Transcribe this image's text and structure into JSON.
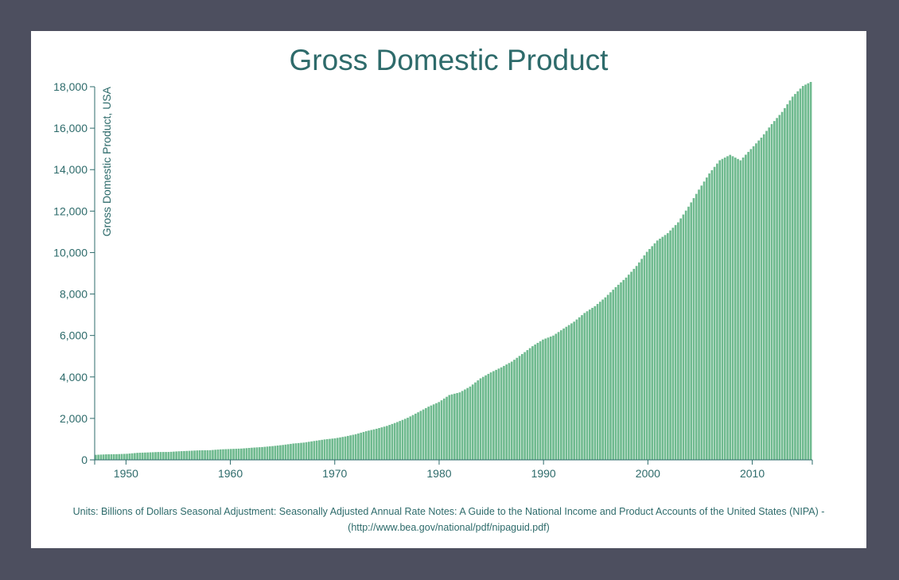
{
  "chart_data": {
    "type": "bar",
    "title": "Gross Domestic Product",
    "ylabel": "Gross Domestic Product, USA",
    "xlabel": "",
    "ylim": [
      0,
      18000
    ],
    "xlim": [
      1947.0,
      2015.75
    ],
    "frequency": "quarterly",
    "bar_color": "#6fba8f",
    "axis_color": "#2e6b6b",
    "y_ticks": [
      {
        "value": 0,
        "label": "0"
      },
      {
        "value": 2000,
        "label": "2,000"
      },
      {
        "value": 4000,
        "label": "4,000"
      },
      {
        "value": 6000,
        "label": "6,000"
      },
      {
        "value": 8000,
        "label": "8,000"
      },
      {
        "value": 10000,
        "label": "10,000"
      },
      {
        "value": 12000,
        "label": "12,000"
      },
      {
        "value": 14000,
        "label": "14,000"
      },
      {
        "value": 16000,
        "label": "16,000"
      },
      {
        "value": 18000,
        "label": "18,000"
      }
    ],
    "x_ticks": [
      {
        "value": 1950,
        "label": "1950"
      },
      {
        "value": 1960,
        "label": "1960"
      },
      {
        "value": 1970,
        "label": "1970"
      },
      {
        "value": 1980,
        "label": "1980"
      },
      {
        "value": 1990,
        "label": "1990"
      },
      {
        "value": 2000,
        "label": "2000"
      },
      {
        "value": 2010,
        "label": "2010"
      }
    ],
    "annual_anchors": {
      "years": [
        1947,
        1948,
        1949,
        1950,
        1951,
        1952,
        1953,
        1954,
        1955,
        1956,
        1957,
        1958,
        1959,
        1960,
        1961,
        1962,
        1963,
        1964,
        1965,
        1966,
        1967,
        1968,
        1969,
        1970,
        1971,
        1972,
        1973,
        1974,
        1975,
        1976,
        1977,
        1978,
        1979,
        1980,
        1981,
        1982,
        1983,
        1984,
        1985,
        1986,
        1987,
        1988,
        1989,
        1990,
        1991,
        1992,
        1993,
        1994,
        1995,
        1996,
        1997,
        1998,
        1999,
        2000,
        2001,
        2002,
        2003,
        2004,
        2005,
        2006,
        2007,
        2008,
        2009,
        2010,
        2011,
        2012,
        2013,
        2014,
        2015
      ],
      "values": [
        243,
        266,
        275,
        293,
        339,
        358,
        379,
        381,
        414,
        437,
        461,
        467,
        506,
        526,
        545,
        586,
        618,
        664,
        719,
        788,
        833,
        910,
        985,
        1039,
        1127,
        1238,
        1382,
        1500,
        1638,
        1825,
        2031,
        2295,
        2566,
        2789,
        3128,
        3255,
        3537,
        3933,
        4220,
        4463,
        4740,
        5104,
        5484,
        5803,
        5996,
        6338,
        6667,
        7086,
        7415,
        7839,
        8332,
        8794,
        9354,
        10035,
        10582,
        10936,
        11458,
        12214,
        13037,
        13815,
        14452,
        14713,
        14449,
        14992,
        15543,
        16197,
        16785,
        17522,
        18037
      ]
    }
  },
  "footnote": {
    "line1": "Units: Billions of Dollars Seasonal Adjustment: Seasonally Adjusted Annual Rate Notes: A Guide to the National Income and Product Accounts of the United States (NIPA) -",
    "line2": "(http://www.bea.gov/national/pdf/nipaguid.pdf)"
  }
}
